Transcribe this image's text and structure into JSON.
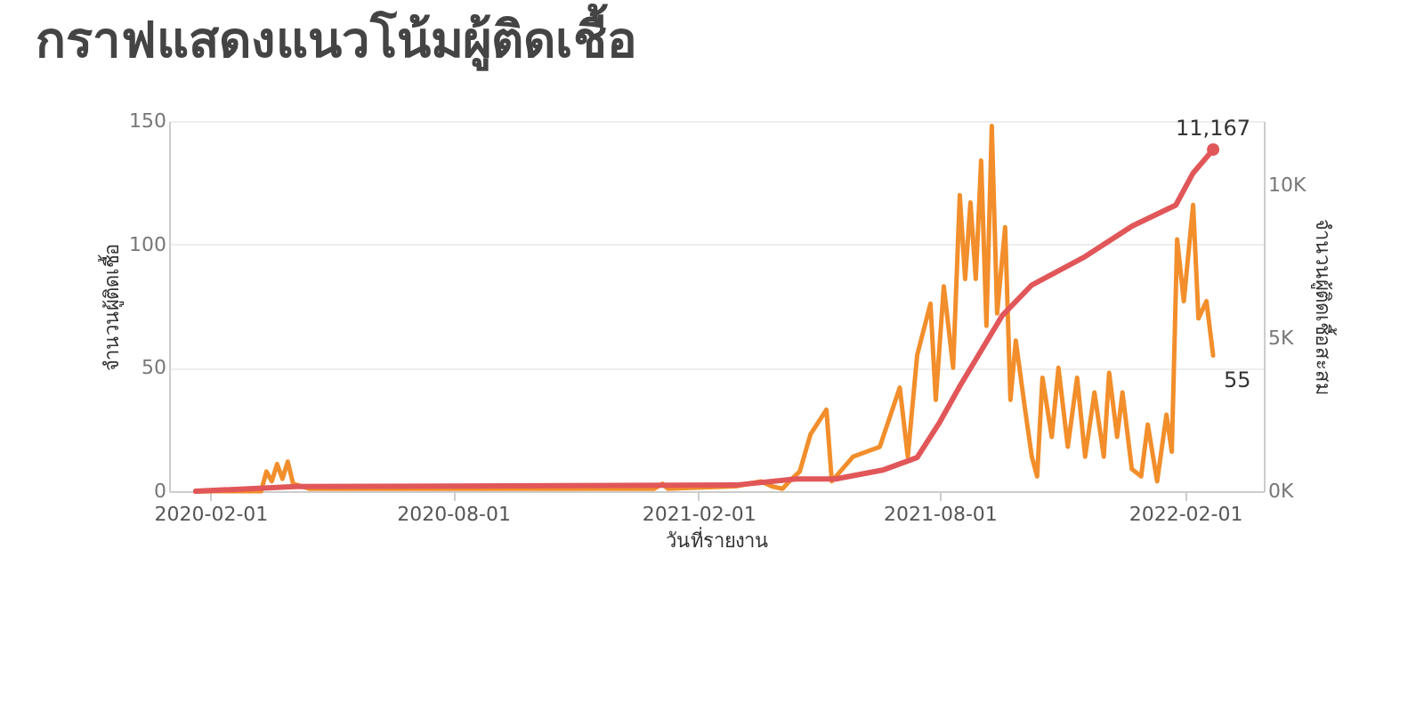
{
  "chart_data": {
    "type": "line",
    "title": "กราฟแสดงแนวโน้มผู้ติดเชื้อ",
    "xlabel": "วันที่รายงาน",
    "ylabel": "จำนวนผู้ติดเชื้อ",
    "y2label": "จำนวนผู้ติดเชื้อสะสม",
    "xlim": [
      "2020-01-01",
      "2022-04-01"
    ],
    "xticks": [
      "2020-02-01",
      "2020-08-01",
      "2021-02-01",
      "2021-08-01",
      "2022-02-01"
    ],
    "ylim": [
      0,
      150
    ],
    "yticks": [
      0,
      50,
      100,
      150
    ],
    "y2lim": [
      0,
      12100
    ],
    "y2ticks": [
      {
        "value": 0,
        "label": "0K"
      },
      {
        "value": 5000,
        "label": "5K"
      },
      {
        "value": 10000,
        "label": "10K"
      }
    ],
    "grid": "y",
    "legend": false,
    "line_style": "solid",
    "series": [
      {
        "color": "#f28e2b",
        "x": [
          "2020-01-21",
          "2020-03-10",
          "2020-03-14",
          "2020-03-18",
          "2020-03-22",
          "2020-03-26",
          "2020-03-30",
          "2020-04-03",
          "2020-04-15",
          "2020-12-30",
          "2021-01-05",
          "2021-01-09",
          "2021-03-01",
          "2021-03-20",
          "2021-03-28",
          "2021-04-05",
          "2021-04-12",
          "2021-04-18",
          "2021-04-26",
          "2021-05-08",
          "2021-05-12",
          "2021-05-28",
          "2021-06-17",
          "2021-07-02",
          "2021-07-08",
          "2021-07-15",
          "2021-07-25",
          "2021-07-29",
          "2021-08-04",
          "2021-08-11",
          "2021-08-16",
          "2021-08-20",
          "2021-08-24",
          "2021-08-28",
          "2021-09-01",
          "2021-09-05",
          "2021-09-09",
          "2021-09-13",
          "2021-09-19",
          "2021-09-23",
          "2021-09-27",
          "2021-10-04",
          "2021-10-09",
          "2021-10-13",
          "2021-10-17",
          "2021-10-24",
          "2021-10-29",
          "2021-11-05",
          "2021-11-12",
          "2021-11-18",
          "2021-11-25",
          "2021-12-02",
          "2021-12-06",
          "2021-12-12",
          "2021-12-16",
          "2021-12-23",
          "2021-12-30",
          "2022-01-04",
          "2022-01-11",
          "2022-01-18",
          "2022-01-22",
          "2022-01-26",
          "2022-01-31",
          "2022-02-07",
          "2022-02-11",
          "2022-02-17",
          "2022-02-22"
        ],
        "values": [
          0,
          0,
          8,
          4,
          11,
          5,
          12,
          3,
          1,
          1,
          3,
          1,
          2,
          4,
          2,
          1,
          5,
          8,
          23,
          33,
          4,
          14,
          18,
          42,
          14,
          55,
          76,
          37,
          83,
          50,
          120,
          86,
          117,
          86,
          134,
          67,
          148,
          72,
          107,
          37,
          61,
          33,
          14,
          6,
          46,
          22,
          50,
          18,
          46,
          14,
          40,
          14,
          48,
          22,
          40,
          9,
          6,
          27,
          4,
          31,
          16,
          102,
          77,
          116,
          70,
          77,
          55
        ],
        "value_labels": [
          null,
          null,
          null,
          null,
          null,
          null,
          null,
          null,
          null,
          null,
          null,
          null,
          null,
          null,
          null,
          null,
          null,
          null,
          null,
          null,
          null,
          null,
          null,
          null,
          null,
          null,
          null,
          null,
          null,
          null,
          null,
          null,
          null,
          null,
          null,
          null,
          null,
          null,
          null,
          null,
          null,
          null,
          null,
          null,
          null,
          null,
          null,
          null,
          null,
          null,
          null,
          null,
          null,
          null,
          null,
          null,
          null,
          null,
          null,
          null,
          null,
          null,
          null,
          null,
          null,
          null,
          "55"
        ]
      },
      {
        "color": "#e15759",
        "axis": "y2",
        "x": [
          "2020-01-21",
          "2020-04-05",
          "2021-03-01",
          "2021-04-15",
          "2021-05-15",
          "2021-06-20",
          "2021-07-15",
          "2021-08-01",
          "2021-08-16",
          "2021-09-17",
          "2021-10-09",
          "2021-11-18",
          "2021-12-23",
          "2022-01-25",
          "2022-02-07",
          "2022-02-22"
        ],
        "values": [
          0,
          150,
          200,
          400,
          400,
          700,
          1100,
          2260,
          3430,
          5750,
          6740,
          7670,
          8660,
          9350,
          10400,
          11167
        ],
        "value_labels": [
          null,
          null,
          null,
          null,
          null,
          null,
          null,
          null,
          null,
          null,
          null,
          null,
          null,
          null,
          null,
          "11,167"
        ]
      }
    ]
  }
}
